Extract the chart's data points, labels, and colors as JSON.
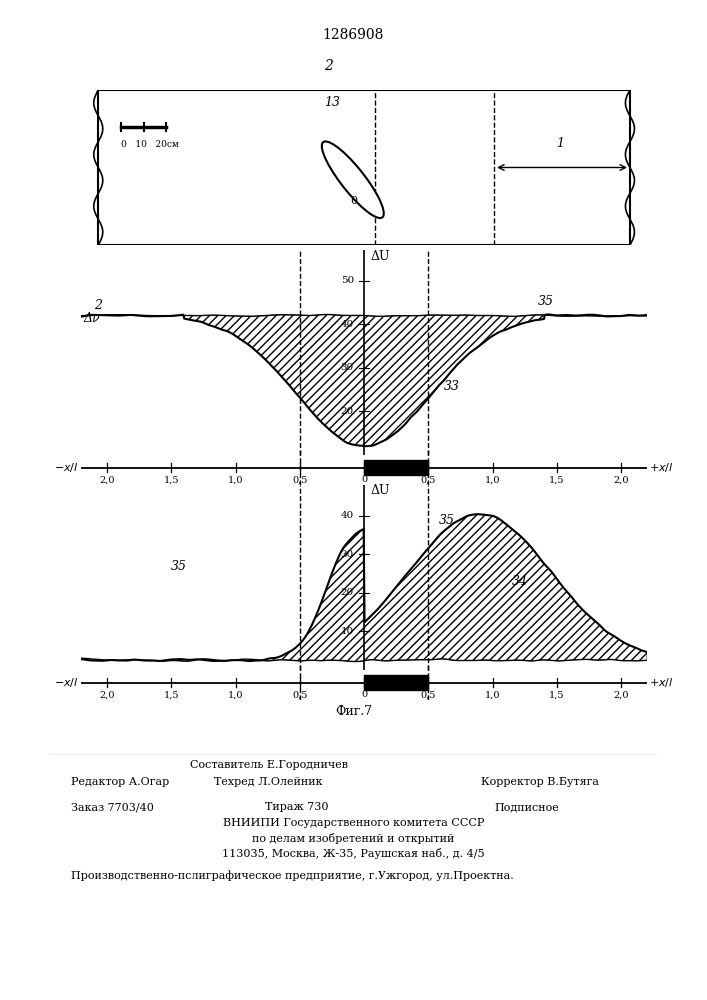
{
  "patent_number": "1286908",
  "fig7_label": "Фиг.7",
  "top_box_label": "2",
  "scale_label": "0   10   20см",
  "body_label": "13",
  "body_sublabel": "0",
  "right_label": "1",
  "dU_label": "ΔU",
  "dv_label": "Δν",
  "label_2_graph1": "2",
  "label_35_g1": "35",
  "label_33_g1": "33",
  "label_35_g2_left": "35",
  "label_35_g2_right": "35",
  "label_34_g2": "34",
  "editor_line": "Редактор А.Огар",
  "composer_line": "Составитель Е.Городничев",
  "techred_line": "Техред Л.Олейник",
  "corrector_line": "Корректор В.Бутяга",
  "order_line": "Заказ 7703/40",
  "tirazh_line": "Тираж 730",
  "podpisnoe_line": "Подписное",
  "vniip_line": "ВНИИПИ Государственного комитета СССР",
  "podelam_line": "по делам изобретений и открытий",
  "address_line": "113035, Москва, Ж-35, Раушская наб., д. 4/5",
  "production_line": "Производственно-пслиграфическое предприятие, г.Ужгород, ул.Проектна."
}
